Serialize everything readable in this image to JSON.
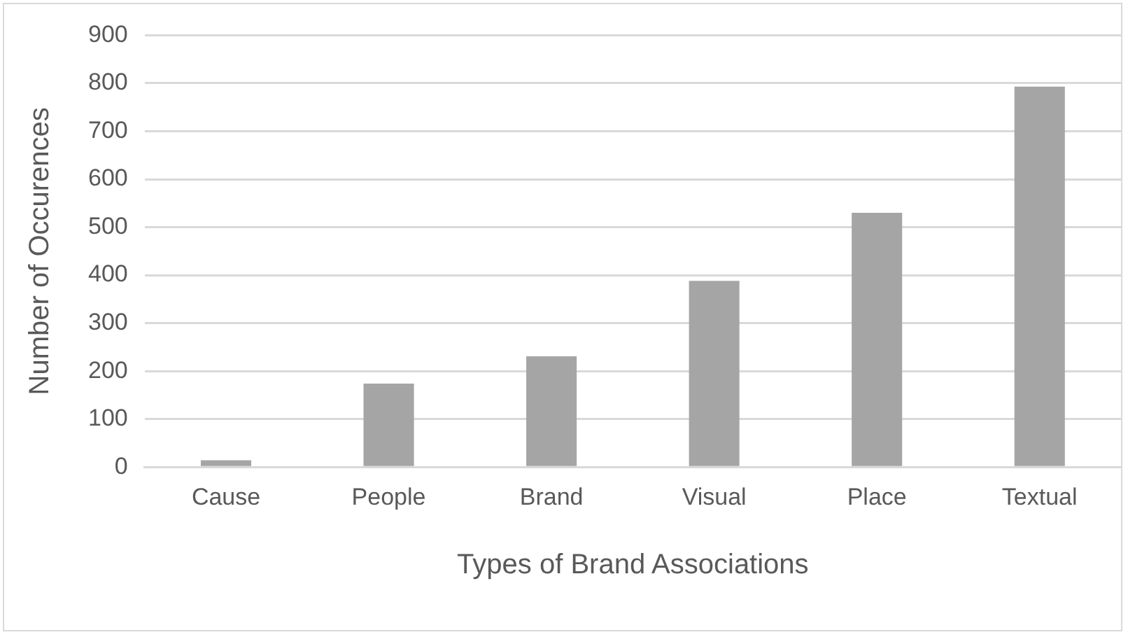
{
  "chart_data": {
    "type": "bar",
    "xlabel": "Types of Brand Associations",
    "ylabel": "Number of Occurences",
    "categories": [
      "Cause",
      "People",
      "Brand",
      "Visual",
      "Place",
      "Textual"
    ],
    "values": [
      14,
      174,
      231,
      388,
      530,
      793
    ],
    "color": "#a5a5a5",
    "ylim": [
      0,
      900
    ],
    "yticks": [
      0,
      100,
      200,
      300,
      400,
      500,
      600,
      700,
      800,
      900
    ],
    "grid": "y",
    "legend": false
  }
}
